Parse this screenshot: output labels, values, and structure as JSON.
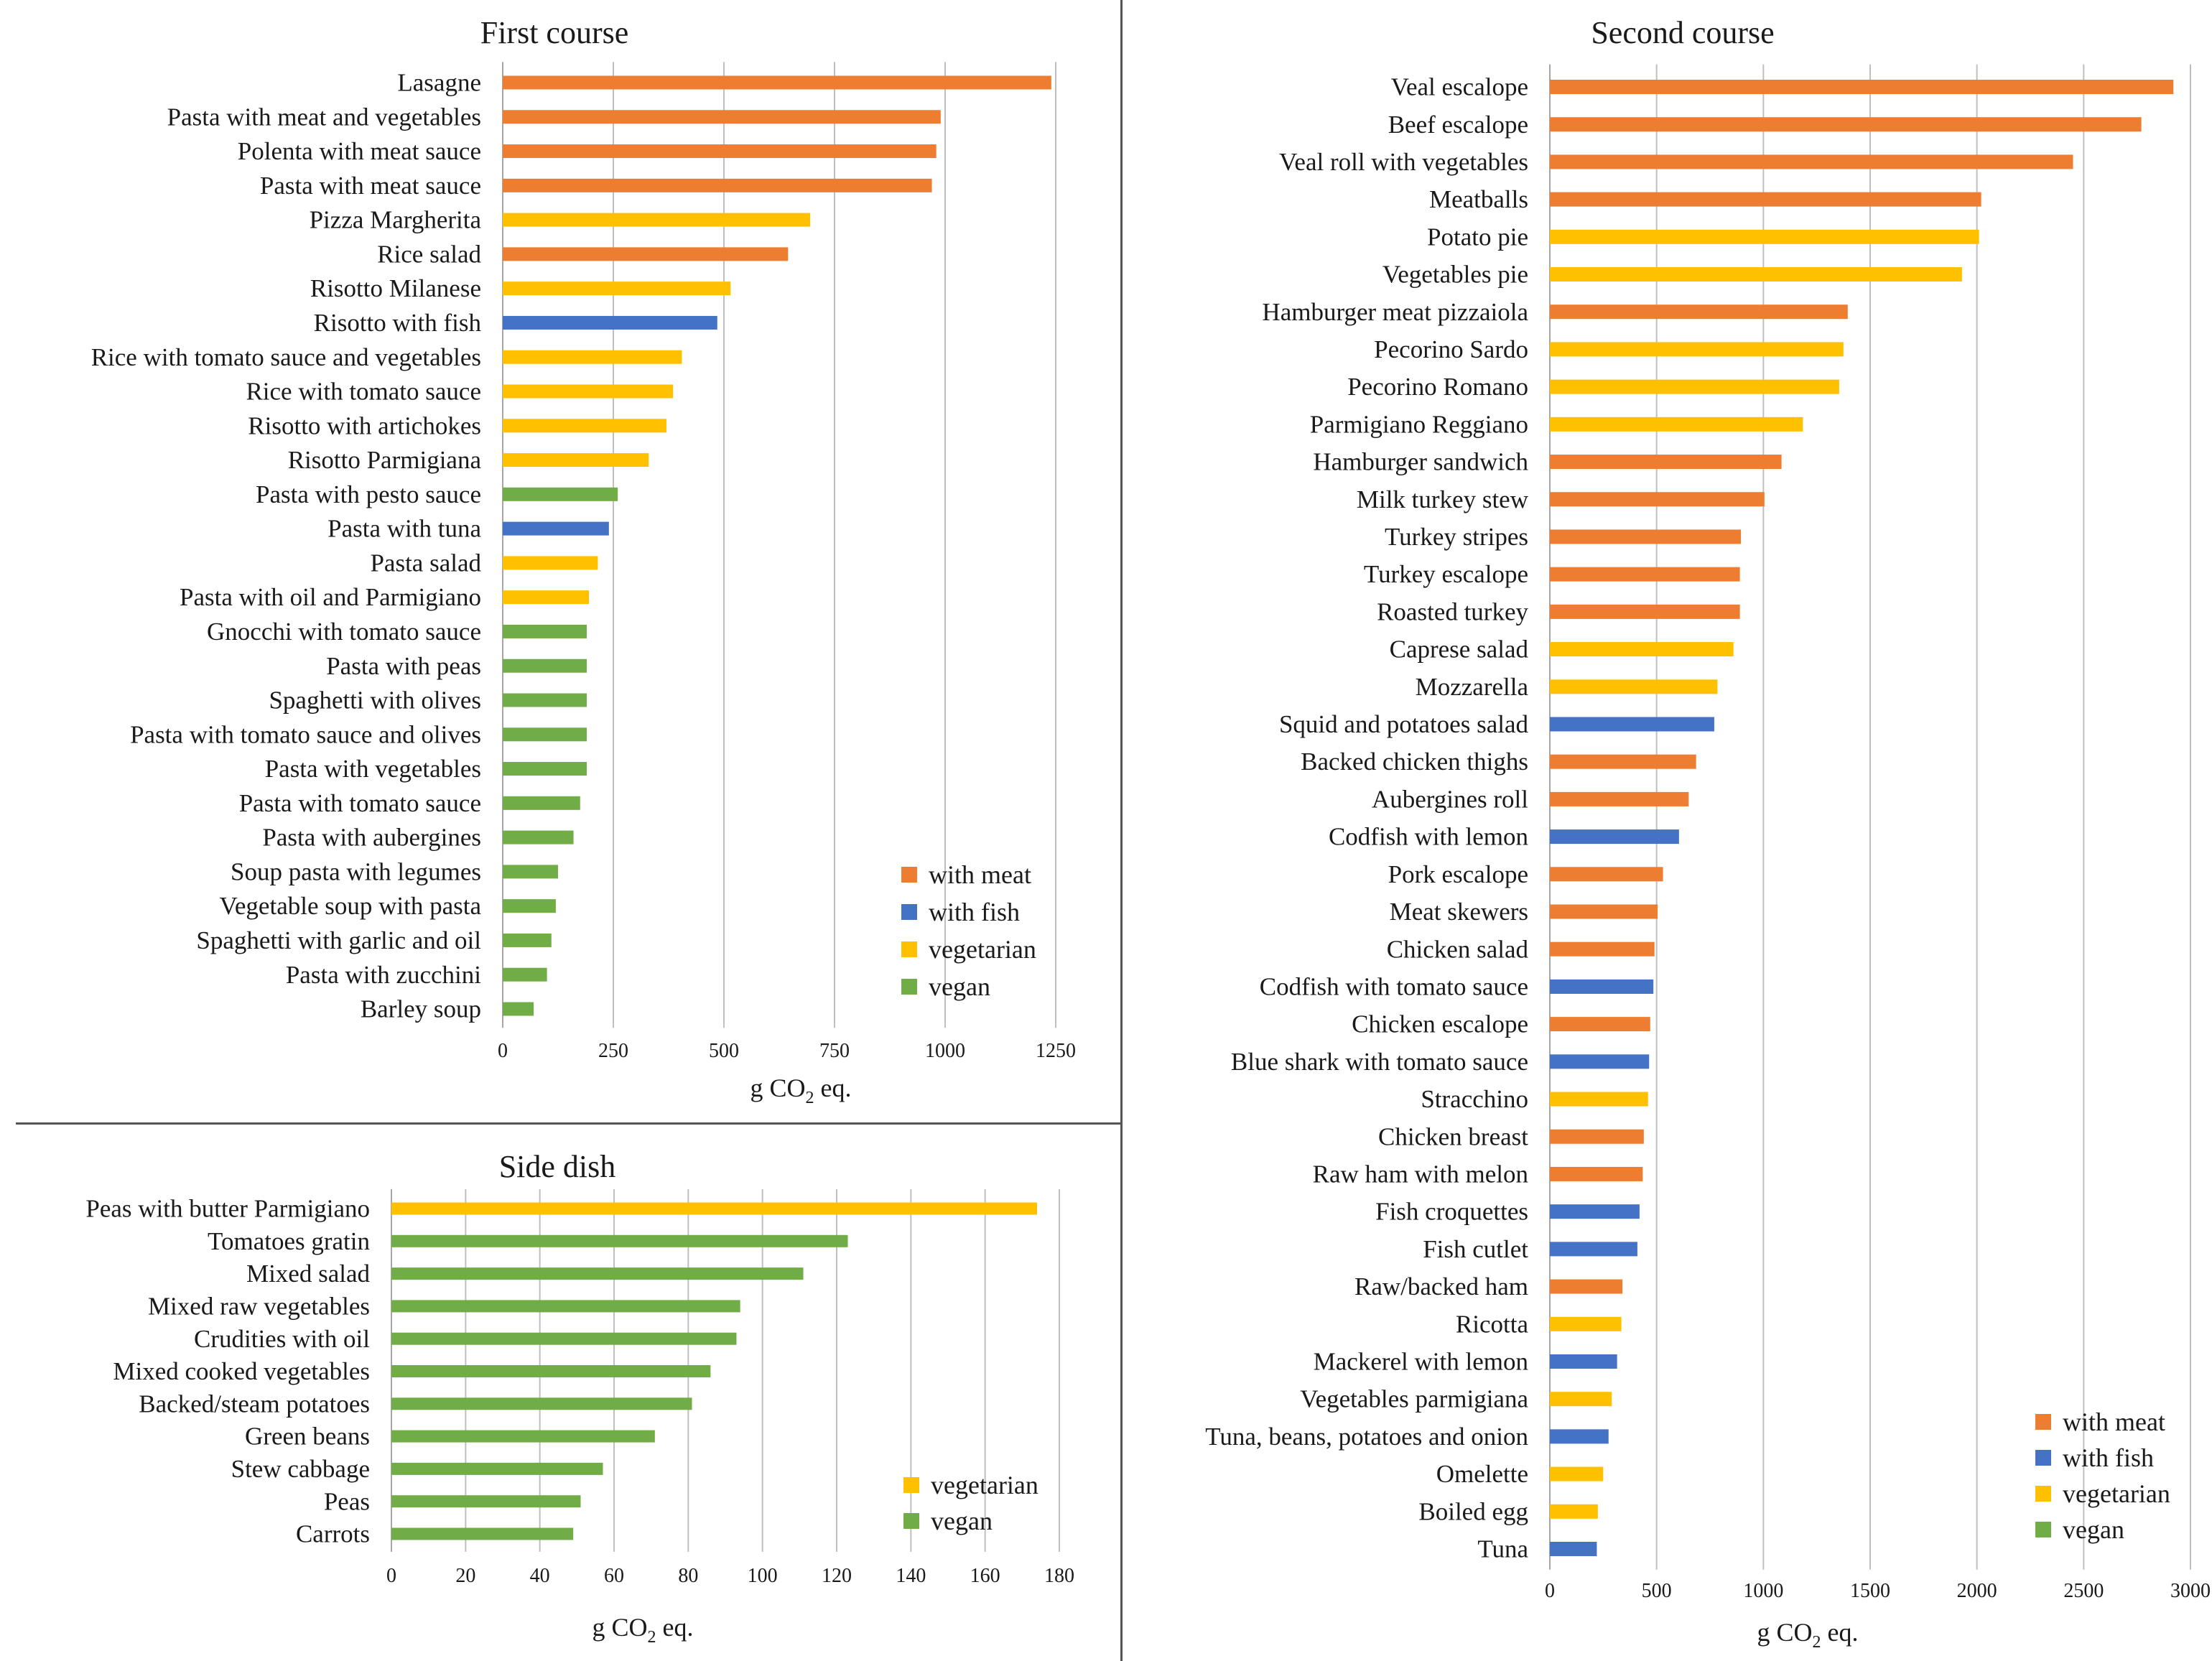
{
  "colors": {
    "with_meat": "#ED7D31",
    "with_fish": "#4472C4",
    "vegetarian": "#FFC000",
    "vegan": "#70AD47",
    "grid": "#BFBFBF",
    "axis": "#A6A6A6"
  },
  "chart_data": [
    {
      "id": "first",
      "type": "bar",
      "orientation": "horizontal",
      "title": "First course",
      "xlabel_main": "g CO",
      "xlabel_sub": "2",
      "xlabel_tail": " eq.",
      "xlim": [
        0,
        1250
      ],
      "xticks": [
        0,
        250,
        500,
        750,
        1000,
        1250
      ],
      "legend": [
        "with meat",
        "with fish",
        "vegetarian",
        "vegan"
      ],
      "legend_keys": [
        "with_meat",
        "with_fish",
        "vegetarian",
        "vegan"
      ],
      "legend_position": "bottom-right",
      "categories": [
        "Lasagne",
        "Pasta with meat and vegetables",
        "Polenta with meat sauce",
        "Pasta with meat sauce",
        "Pizza Margherita",
        "Rice salad",
        "Risotto Milanese",
        "Risotto with fish",
        "Rice with tomato sauce and vegetables",
        "Rice with tomato sauce",
        "Risotto with artichokes",
        "Risotto Parmigiana",
        "Pasta with pesto sauce",
        "Pasta with tuna",
        "Pasta salad",
        "Pasta with oil and Parmigiano",
        "Gnocchi with tomato sauce",
        "Pasta with peas",
        "Spaghetti with olives",
        "Pasta with tomato sauce and olives",
        "Pasta with vegetables",
        "Pasta with tomato sauce",
        "Pasta with aubergines",
        "Soup pasta with legumes",
        "Vegetable soup with pasta",
        "Spaghetti with garlic and oil",
        "Pasta with zucchini",
        "Barley soup"
      ],
      "values": [
        1240,
        990,
        980,
        970,
        695,
        645,
        515,
        485,
        405,
        385,
        370,
        330,
        260,
        240,
        215,
        195,
        190,
        190,
        190,
        190,
        190,
        175,
        160,
        125,
        120,
        110,
        100,
        70
      ],
      "groups": [
        "with_meat",
        "with_meat",
        "with_meat",
        "with_meat",
        "vegetarian",
        "with_meat",
        "vegetarian",
        "with_fish",
        "vegetarian",
        "vegetarian",
        "vegetarian",
        "vegetarian",
        "vegan",
        "with_fish",
        "vegetarian",
        "vegetarian",
        "vegan",
        "vegan",
        "vegan",
        "vegan",
        "vegan",
        "vegan",
        "vegan",
        "vegan",
        "vegan",
        "vegan",
        "vegan",
        "vegan"
      ]
    },
    {
      "id": "side",
      "type": "bar",
      "orientation": "horizontal",
      "title": "Side dish",
      "xlabel_main": "g CO",
      "xlabel_sub": "2",
      "xlabel_tail": " eq.",
      "xlim": [
        0,
        180
      ],
      "xticks": [
        0,
        20,
        40,
        60,
        80,
        100,
        120,
        140,
        160,
        180
      ],
      "legend": [
        "vegetarian",
        "vegan"
      ],
      "legend_keys": [
        "vegetarian",
        "vegan"
      ],
      "legend_position": "bottom-right",
      "categories": [
        "Peas with butter Parmigiano",
        "Tomatoes gratin",
        "Mixed salad",
        "Mixed raw vegetables",
        "Crudities with oil",
        "Mixed cooked vegetables",
        "Backed/steam potatoes",
        "Green beans",
        "Stew cabbage",
        "Peas",
        "Carrots"
      ],
      "values": [
        174,
        123,
        111,
        94,
        93,
        86,
        81,
        71,
        57,
        51,
        49
      ],
      "groups": [
        "vegetarian",
        "vegan",
        "vegan",
        "vegan",
        "vegan",
        "vegan",
        "vegan",
        "vegan",
        "vegan",
        "vegan",
        "vegan"
      ]
    },
    {
      "id": "second",
      "type": "bar",
      "orientation": "horizontal",
      "title": "Second course",
      "xlabel_main": "g CO",
      "xlabel_sub": "2",
      "xlabel_tail": " eq.",
      "xlim": [
        0,
        3000
      ],
      "xticks": [
        0,
        500,
        1000,
        1500,
        2000,
        2500,
        3000
      ],
      "legend": [
        "with meat",
        "with fish",
        "vegetarian",
        "vegan"
      ],
      "legend_keys": [
        "with_meat",
        "with_fish",
        "vegetarian",
        "vegan"
      ],
      "legend_position": "bottom-right",
      "categories": [
        "Veal escalope",
        "Beef escalope",
        "Veal roll with vegetables",
        "Meatballs",
        "Potato pie",
        "Vegetables pie",
        "Hamburger meat pizzaiola",
        "Pecorino Sardo",
        "Pecorino Romano",
        "Parmigiano Reggiano",
        "Hamburger sandwich",
        "Milk turkey stew",
        "Turkey stripes",
        "Turkey escalope",
        "Roasted turkey",
        "Caprese salad",
        "Mozzarella",
        "Squid and potatoes salad",
        "Backed chicken thighs",
        "Aubergines roll",
        "Codfish with lemon",
        "Pork escalope",
        "Meat skewers",
        "Chicken salad",
        "Codfish with tomato sauce",
        "Chicken escalope",
        "Blue shark with tomato sauce",
        "Stracchino",
        "Chicken breast",
        "Raw ham with melon",
        "Fish croquettes",
        "Fish cutlet",
        "Raw/backed ham",
        "Ricotta",
        "Mackerel with lemon",
        "Vegetables parmigiana",
        "Tuna, beans, potatoes and onion",
        "Omelette",
        "Boiled egg",
        "Tuna"
      ],
      "values": [
        2920,
        2770,
        2450,
        2020,
        2010,
        1930,
        1395,
        1375,
        1355,
        1185,
        1085,
        1005,
        895,
        890,
        890,
        860,
        785,
        770,
        685,
        650,
        605,
        530,
        505,
        490,
        485,
        470,
        465,
        460,
        440,
        435,
        420,
        410,
        340,
        335,
        315,
        290,
        275,
        250,
        225,
        220
      ],
      "groups": [
        "with_meat",
        "with_meat",
        "with_meat",
        "with_meat",
        "vegetarian",
        "vegetarian",
        "with_meat",
        "vegetarian",
        "vegetarian",
        "vegetarian",
        "with_meat",
        "with_meat",
        "with_meat",
        "with_meat",
        "with_meat",
        "vegetarian",
        "vegetarian",
        "with_fish",
        "with_meat",
        "with_meat",
        "with_fish",
        "with_meat",
        "with_meat",
        "with_meat",
        "with_fish",
        "with_meat",
        "with_fish",
        "vegetarian",
        "with_meat",
        "with_meat",
        "with_fish",
        "with_fish",
        "with_meat",
        "vegetarian",
        "with_fish",
        "vegetarian",
        "with_fish",
        "vegetarian",
        "vegetarian",
        "with_fish"
      ]
    }
  ]
}
